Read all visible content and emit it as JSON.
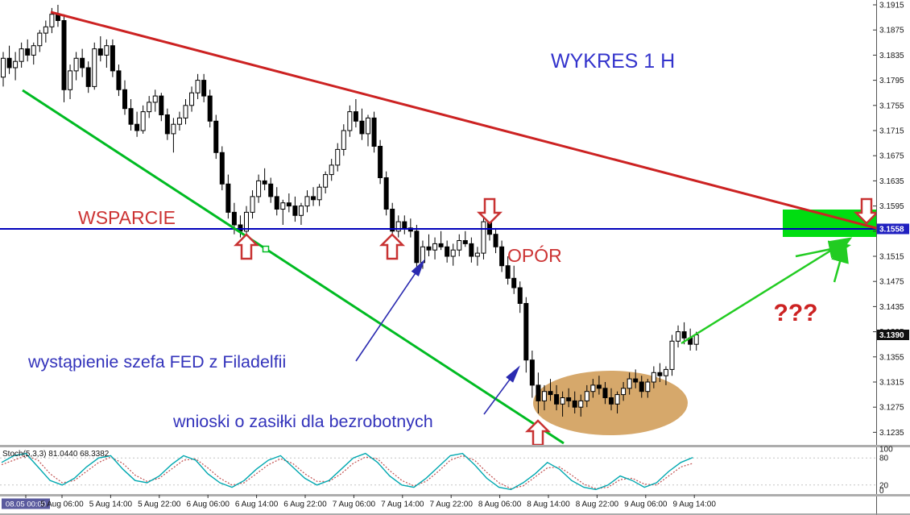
{
  "annotations": {
    "chart_title": "WYKRES 1 H",
    "support_label": "WSPARCIE",
    "resistance_label": "OPÓR",
    "fed_note": "wystąpienie szefa FED z Filadelfii",
    "claims_note": "wnioski o zasiłki dla bezrobotnych",
    "question_marks": "???"
  },
  "colors": {
    "bullish_body": "#ffffff",
    "bearish_body": "#000000",
    "trend_red": "#cc2222",
    "trend_green": "#00bb22",
    "level_blue": "#0000bb",
    "highlight_green": "#00dd11",
    "ellipse_tan": "#d6a86b",
    "annotation_blue": "#3333bb",
    "annotation_red": "#cc3333",
    "stoch_main": "#00a8b0",
    "stoch_signal": "#c05050",
    "time_highlight_bg": "#5a5a9e"
  },
  "chart_data": {
    "type": "candlestick",
    "title": "WYKRES 1 H",
    "grid": false,
    "y_axis": {
      "max": 3.1915,
      "min": 3.1235,
      "ticks": [
        "3.1915",
        "3.1875",
        "3.1835",
        "3.1795",
        "3.1755",
        "3.1715",
        "3.1675",
        "3.1635",
        "3.1595",
        "3.1555",
        "3.1515",
        "3.1475",
        "3.1435",
        "3.1395",
        "3.1355",
        "3.1315",
        "3.1275",
        "3.1235"
      ]
    },
    "x_axis": {
      "labels": [
        "08.05 00:00",
        "5 Aug 06:00",
        "5 Aug 14:00",
        "5 Aug 22:00",
        "6 Aug 06:00",
        "6 Aug 14:00",
        "6 Aug 22:00",
        "7 Aug 06:00",
        "7 Aug 14:00",
        "7 Aug 22:00",
        "8 Aug 06:00",
        "8 Aug 14:00",
        "8 Aug 22:00",
        "9 Aug 06:00",
        "9 Aug 14:00"
      ]
    },
    "price_badges": {
      "level": "3.1558",
      "current": "3.1390"
    },
    "levels": {
      "support_resistance_line": 3.1558
    },
    "candles": [
      [
        3.18,
        3.184,
        3.1785,
        3.183
      ],
      [
        3.183,
        3.185,
        3.1805,
        3.1815
      ],
      [
        3.1815,
        3.184,
        3.1795,
        3.1825
      ],
      [
        3.1825,
        3.1855,
        3.1815,
        3.1845
      ],
      [
        3.1845,
        3.186,
        3.1825,
        3.1835
      ],
      [
        3.1835,
        3.1855,
        3.182,
        3.185
      ],
      [
        3.185,
        3.1875,
        3.184,
        3.187
      ],
      [
        3.187,
        3.189,
        3.1855,
        3.188
      ],
      [
        3.188,
        3.191,
        3.187,
        3.19
      ],
      [
        3.19,
        3.1915,
        3.188,
        3.189
      ],
      [
        3.189,
        3.19,
        3.176,
        3.178
      ],
      [
        3.178,
        3.182,
        3.1765,
        3.181
      ],
      [
        3.181,
        3.184,
        3.1795,
        3.183
      ],
      [
        3.183,
        3.1845,
        3.18,
        3.1815
      ],
      [
        3.1815,
        3.1825,
        3.1775,
        3.1785
      ],
      [
        3.1785,
        3.1855,
        3.178,
        3.1845
      ],
      [
        3.1845,
        3.1865,
        3.1825,
        3.1835
      ],
      [
        3.1835,
        3.186,
        3.1815,
        3.185
      ],
      [
        3.185,
        3.186,
        3.18,
        3.181
      ],
      [
        3.181,
        3.182,
        3.177,
        3.178
      ],
      [
        3.178,
        3.1795,
        3.174,
        3.175
      ],
      [
        3.175,
        3.1765,
        3.1715,
        3.1725
      ],
      [
        3.1725,
        3.1745,
        3.1705,
        3.1715
      ],
      [
        3.1715,
        3.1755,
        3.171,
        3.1745
      ],
      [
        3.1745,
        3.177,
        3.1735,
        3.176
      ],
      [
        3.176,
        3.178,
        3.1745,
        3.177
      ],
      [
        3.177,
        3.1775,
        3.173,
        3.174
      ],
      [
        3.174,
        3.175,
        3.17,
        3.171
      ],
      [
        3.171,
        3.1735,
        3.168,
        3.1725
      ],
      [
        3.1725,
        3.1745,
        3.1715,
        3.1735
      ],
      [
        3.1735,
        3.1765,
        3.1725,
        3.1755
      ],
      [
        3.1755,
        3.1785,
        3.1745,
        3.1775
      ],
      [
        3.1775,
        3.1805,
        3.1765,
        3.1795
      ],
      [
        3.1795,
        3.1805,
        3.176,
        3.177
      ],
      [
        3.177,
        3.178,
        3.172,
        3.173
      ],
      [
        3.173,
        3.174,
        3.167,
        3.168
      ],
      [
        3.168,
        3.169,
        3.162,
        3.163
      ],
      [
        3.163,
        3.1645,
        3.1575,
        3.1585
      ],
      [
        3.1585,
        3.16,
        3.155,
        3.1565
      ],
      [
        3.1565,
        3.158,
        3.1545,
        3.1555
      ],
      [
        3.1555,
        3.1595,
        3.1545,
        3.1585
      ],
      [
        3.1585,
        3.162,
        3.1575,
        3.161
      ],
      [
        3.161,
        3.1645,
        3.16,
        3.1635
      ],
      [
        3.1635,
        3.1655,
        3.162,
        3.163
      ],
      [
        3.163,
        3.164,
        3.16,
        3.161
      ],
      [
        3.161,
        3.1625,
        3.158,
        3.159
      ],
      [
        3.159,
        3.1605,
        3.1565,
        3.16
      ],
      [
        3.16,
        3.1615,
        3.1585,
        3.1595
      ],
      [
        3.1595,
        3.161,
        3.157,
        3.158
      ],
      [
        3.158,
        3.16,
        3.1565,
        3.1595
      ],
      [
        3.1595,
        3.162,
        3.1585,
        3.161
      ],
      [
        3.161,
        3.1625,
        3.1595,
        3.1605
      ],
      [
        3.1605,
        3.163,
        3.1595,
        3.1625
      ],
      [
        3.1625,
        3.165,
        3.1615,
        3.1645
      ],
      [
        3.1645,
        3.167,
        3.1635,
        3.166
      ],
      [
        3.166,
        3.1695,
        3.165,
        3.1685
      ],
      [
        3.1685,
        3.1725,
        3.1675,
        3.1715
      ],
      [
        3.1715,
        3.1755,
        3.1705,
        3.1745
      ],
      [
        3.1745,
        3.1765,
        3.172,
        3.173
      ],
      [
        3.173,
        3.175,
        3.17,
        3.171
      ],
      [
        3.171,
        3.174,
        3.169,
        3.1735
      ],
      [
        3.1735,
        3.1745,
        3.168,
        3.169
      ],
      [
        3.169,
        3.17,
        3.163,
        3.164
      ],
      [
        3.164,
        3.165,
        3.158,
        3.159
      ],
      [
        3.159,
        3.16,
        3.1545,
        3.1555
      ],
      [
        3.1555,
        3.158,
        3.1545,
        3.157
      ],
      [
        3.157,
        3.158,
        3.155,
        3.156
      ],
      [
        3.156,
        3.1575,
        3.1545,
        3.1555
      ],
      [
        3.1555,
        3.1565,
        3.149,
        3.1505
      ],
      [
        3.1505,
        3.154,
        3.1495,
        3.153
      ],
      [
        3.153,
        3.155,
        3.1515,
        3.1525
      ],
      [
        3.1525,
        3.1545,
        3.151,
        3.1535
      ],
      [
        3.1535,
        3.1555,
        3.1525,
        3.153
      ],
      [
        3.153,
        3.154,
        3.1505,
        3.1515
      ],
      [
        3.1515,
        3.1535,
        3.15,
        3.1525
      ],
      [
        3.1525,
        3.155,
        3.1515,
        3.154
      ],
      [
        3.154,
        3.1555,
        3.153,
        3.1535
      ],
      [
        3.1535,
        3.1545,
        3.1505,
        3.1515
      ],
      [
        3.1515,
        3.153,
        3.15,
        3.152
      ],
      [
        3.152,
        3.1585,
        3.151,
        3.157
      ],
      [
        3.157,
        3.158,
        3.154,
        3.155
      ],
      [
        3.155,
        3.156,
        3.152,
        3.153
      ],
      [
        3.153,
        3.154,
        3.149,
        3.15
      ],
      [
        3.15,
        3.1515,
        3.147,
        3.148
      ],
      [
        3.148,
        3.15,
        3.1455,
        3.1465
      ],
      [
        3.1465,
        3.1475,
        3.1425,
        3.144
      ],
      [
        3.144,
        3.145,
        3.133,
        3.135
      ],
      [
        3.135,
        3.1365,
        3.129,
        3.131
      ],
      [
        3.131,
        3.133,
        3.1265,
        3.1285
      ],
      [
        3.1285,
        3.131,
        3.127,
        3.13
      ],
      [
        3.13,
        3.132,
        3.1285,
        3.1295
      ],
      [
        3.1295,
        3.131,
        3.127,
        3.128
      ],
      [
        3.128,
        3.13,
        3.126,
        3.129
      ],
      [
        3.129,
        3.1305,
        3.1275,
        3.1285
      ],
      [
        3.1285,
        3.13,
        3.1265,
        3.1275
      ],
      [
        3.1275,
        3.1295,
        3.126,
        3.1285
      ],
      [
        3.1285,
        3.131,
        3.1275,
        3.13
      ],
      [
        3.13,
        3.132,
        3.129,
        3.131
      ],
      [
        3.131,
        3.1325,
        3.1295,
        3.1305
      ],
      [
        3.1305,
        3.1315,
        3.128,
        3.129
      ],
      [
        3.129,
        3.1305,
        3.127,
        3.128
      ],
      [
        3.128,
        3.13,
        3.1265,
        3.1295
      ],
      [
        3.1295,
        3.1315,
        3.1285,
        3.1305
      ],
      [
        3.1305,
        3.133,
        3.1295,
        3.132
      ],
      [
        3.132,
        3.1335,
        3.1305,
        3.1315
      ],
      [
        3.1315,
        3.1325,
        3.129,
        3.13
      ],
      [
        3.13,
        3.132,
        3.129,
        3.1315
      ],
      [
        3.1315,
        3.134,
        3.1305,
        3.133
      ],
      [
        3.133,
        3.1345,
        3.1315,
        3.1325
      ],
      [
        3.1325,
        3.134,
        3.131,
        3.1335
      ],
      [
        3.1335,
        3.139,
        3.1325,
        3.138
      ],
      [
        3.138,
        3.1405,
        3.137,
        3.1395
      ],
      [
        3.1395,
        3.141,
        3.1375,
        3.1385
      ],
      [
        3.1385,
        3.14,
        3.1365,
        3.1375
      ],
      [
        3.1375,
        3.1395,
        3.1365,
        3.139
      ]
    ],
    "indicator": {
      "name_label": "Stoch(5,3,3) 81.0440 68.3382",
      "levels": [
        80,
        20
      ],
      "scale_labels": [
        "100",
        "80",
        "20",
        "0"
      ],
      "k": [
        70,
        85,
        90,
        60,
        30,
        20,
        35,
        60,
        80,
        85,
        55,
        30,
        25,
        40,
        65,
        85,
        75,
        45,
        25,
        15,
        30,
        55,
        75,
        85,
        60,
        35,
        20,
        30,
        55,
        80,
        90,
        70,
        40,
        20,
        15,
        35,
        60,
        85,
        90,
        65,
        35,
        15,
        10,
        25,
        45,
        70,
        55,
        30,
        15,
        10,
        20,
        40,
        30,
        15,
        25,
        50,
        70,
        81
      ],
      "d": [
        65,
        75,
        85,
        75,
        45,
        25,
        30,
        50,
        70,
        82,
        68,
        42,
        28,
        35,
        55,
        75,
        78,
        58,
        35,
        20,
        25,
        45,
        65,
        78,
        68,
        45,
        28,
        28,
        45,
        68,
        82,
        78,
        52,
        30,
        18,
        28,
        50,
        75,
        85,
        75,
        48,
        25,
        12,
        18,
        38,
        58,
        60,
        42,
        22,
        12,
        15,
        32,
        35,
        22,
        20,
        40,
        60,
        68
      ]
    }
  }
}
